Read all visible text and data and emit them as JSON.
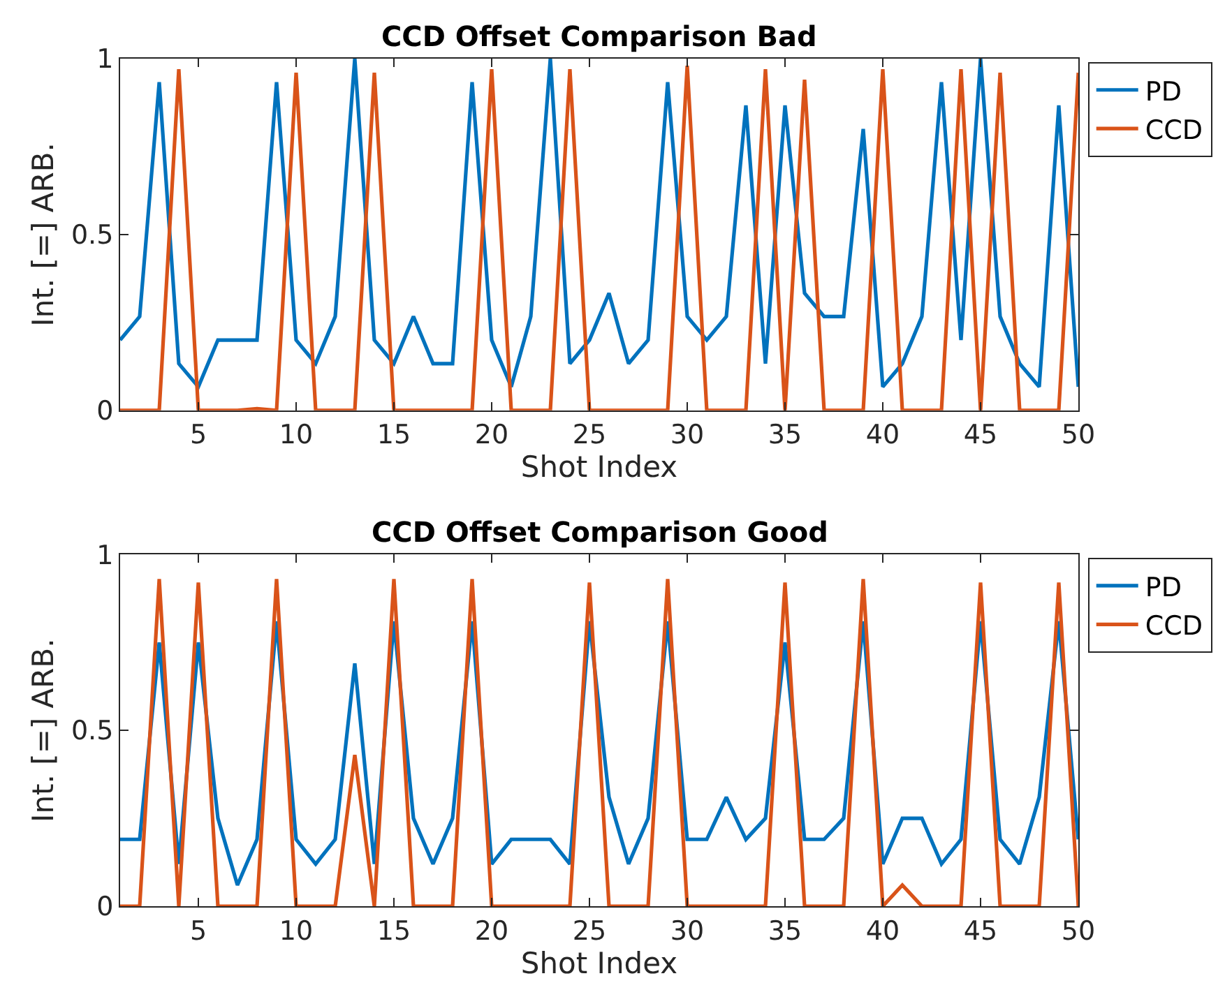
{
  "chart_data": [
    {
      "type": "line",
      "title": "CCD Offset Comparison Bad",
      "xlabel": "Shot Index",
      "ylabel": "Int. [=] ARB.",
      "xlim": [
        1,
        50
      ],
      "xticks": [
        5,
        10,
        15,
        20,
        25,
        30,
        35,
        40,
        45,
        50
      ],
      "ylim": [
        0,
        1
      ],
      "yticks": [
        0,
        0.5,
        1
      ],
      "legend": "right",
      "marker": "none",
      "line_style": "solid",
      "x": [
        1,
        2,
        3,
        4,
        5,
        6,
        7,
        8,
        9,
        10,
        11,
        12,
        13,
        14,
        15,
        16,
        17,
        18,
        19,
        20,
        21,
        22,
        23,
        24,
        25,
        26,
        27,
        28,
        29,
        30,
        31,
        32,
        33,
        34,
        35,
        36,
        37,
        38,
        39,
        40,
        41,
        42,
        43,
        44,
        45,
        46,
        47,
        48,
        49,
        50
      ],
      "series": [
        {
          "name": "PD",
          "color": "#0072bd",
          "values": [
            0.2,
            0.267,
            0.933,
            0.133,
            0.067,
            0.2,
            0.2,
            0.2,
            0.933,
            0.2,
            0.133,
            0.267,
            1.0,
            0.2,
            0.133,
            0.267,
            0.133,
            0.133,
            0.933,
            0.2,
            0.067,
            0.267,
            1.0,
            0.133,
            0.2,
            0.333,
            0.133,
            0.2,
            0.933,
            0.267,
            0.2,
            0.267,
            0.867,
            0.133,
            0.867,
            0.333,
            0.267,
            0.267,
            0.8,
            0.067,
            0.133,
            0.267,
            0.933,
            0.2,
            1.0,
            0.267,
            0.133,
            0.067,
            0.867,
            0.067
          ]
        },
        {
          "name": "CCD",
          "color": "#d95319",
          "values": [
            0,
            0,
            0,
            0.97,
            0,
            0,
            0,
            0.005,
            0,
            0.96,
            0,
            0,
            0,
            0.96,
            0,
            0,
            0,
            0,
            0,
            0.97,
            0,
            0,
            0,
            0.97,
            0,
            0,
            0,
            0,
            0,
            0.98,
            0,
            0,
            0,
            0.97,
            0,
            0.94,
            0,
            0,
            0,
            0.97,
            0,
            0,
            0,
            0.97,
            0,
            0.96,
            0,
            0,
            0,
            0.96
          ]
        }
      ]
    },
    {
      "type": "line",
      "title": "CCD Offset Comparison Good",
      "xlabel": "Shot Index",
      "ylabel": "Int. [=] ARB.",
      "xlim": [
        1,
        50
      ],
      "xticks": [
        5,
        10,
        15,
        20,
        25,
        30,
        35,
        40,
        45,
        50
      ],
      "ylim": [
        0,
        1
      ],
      "yticks": [
        0,
        0.5,
        1
      ],
      "legend": "right",
      "marker": "none",
      "line_style": "solid",
      "x": [
        1,
        2,
        3,
        4,
        5,
        6,
        7,
        8,
        9,
        10,
        11,
        12,
        13,
        14,
        15,
        16,
        17,
        18,
        19,
        20,
        21,
        22,
        23,
        24,
        25,
        26,
        27,
        28,
        29,
        30,
        31,
        32,
        33,
        34,
        35,
        36,
        37,
        38,
        39,
        40,
        41,
        42,
        43,
        44,
        45,
        46,
        47,
        48,
        49,
        50
      ],
      "series": [
        {
          "name": "PD",
          "color": "#0072bd",
          "values": [
            0.19,
            0.19,
            0.75,
            0.12,
            0.75,
            0.25,
            0.06,
            0.19,
            0.81,
            0.19,
            0.12,
            0.19,
            0.69,
            0.12,
            0.81,
            0.25,
            0.12,
            0.25,
            0.81,
            0.12,
            0.19,
            0.19,
            0.19,
            0.12,
            0.81,
            0.31,
            0.12,
            0.25,
            0.81,
            0.19,
            0.19,
            0.31,
            0.19,
            0.25,
            0.75,
            0.19,
            0.19,
            0.25,
            0.81,
            0.12,
            0.25,
            0.25,
            0.12,
            0.19,
            0.81,
            0.19,
            0.12,
            0.31,
            0.81,
            0.19
          ]
        },
        {
          "name": "CCD",
          "color": "#d95319",
          "values": [
            0,
            0,
            0.93,
            0,
            0.92,
            0,
            0,
            0,
            0.93,
            0,
            0,
            0,
            0.43,
            0,
            0.93,
            0,
            0,
            0,
            0.93,
            0,
            0,
            0,
            0,
            0,
            0.92,
            0,
            0,
            0,
            0.93,
            0,
            0,
            0,
            0,
            0,
            0.92,
            0,
            0,
            0,
            0.93,
            0,
            0.06,
            0,
            0,
            0,
            0.92,
            0,
            0,
            0,
            0.92,
            0
          ]
        }
      ]
    }
  ]
}
